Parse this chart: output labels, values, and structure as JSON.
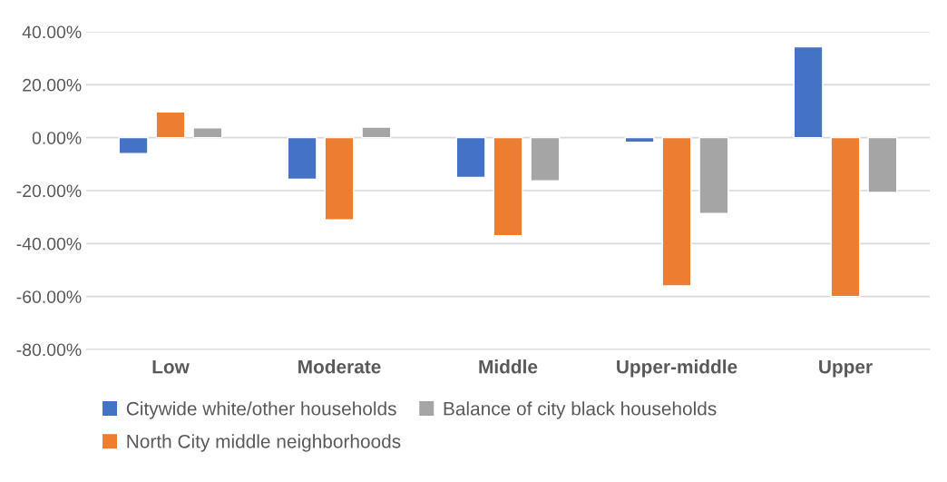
{
  "chart_data": {
    "type": "bar",
    "categories": [
      "Low",
      "Moderate",
      "Middle",
      "Upper-middle",
      "Upper"
    ],
    "series": [
      {
        "name": "Citywide white/other households",
        "color": "#4472c4",
        "values": [
          -6,
          -15.7,
          -15,
          -1.7,
          34.3
        ]
      },
      {
        "name": "North City middle neighborhoods",
        "color": "#ed7d31",
        "values": [
          9.7,
          -31,
          -37,
          -56,
          -60
        ]
      },
      {
        "name": "Balance of city black households",
        "color": "#a5a5a5",
        "values": [
          3.7,
          4.0,
          -16.3,
          -28.6,
          -20.7
        ]
      }
    ],
    "ylim": [
      -80,
      40
    ],
    "yticks": [
      {
        "value": -80,
        "label": "-80.00%"
      },
      {
        "value": -60,
        "label": "-60.00%"
      },
      {
        "value": -40,
        "label": "-40.00%"
      },
      {
        "value": -20,
        "label": "-20.00%"
      },
      {
        "value": 0,
        "label": "0.00%"
      },
      {
        "value": 20,
        "label": "20.00%"
      },
      {
        "value": 40,
        "label": "40.00%"
      }
    ],
    "grid": "y",
    "legend": "bottom"
  }
}
